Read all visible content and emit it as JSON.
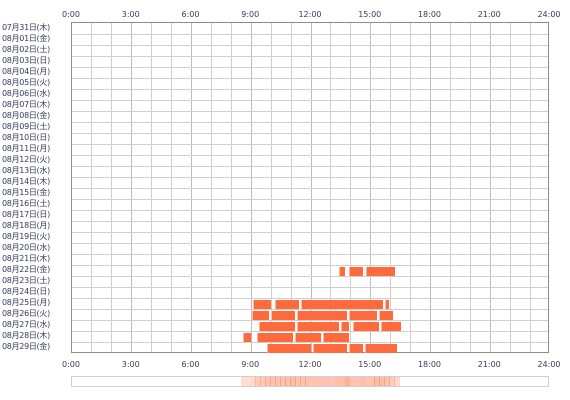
{
  "chart_data": {
    "type": "timeline",
    "x_range_hours": [
      0,
      24
    ],
    "tick_labels": [
      "0:00",
      "3:00",
      "6:00",
      "9:00",
      "12:00",
      "15:00",
      "18:00",
      "21:00",
      "24:00"
    ],
    "tick_hours": [
      0,
      3,
      6,
      9,
      12,
      15,
      18,
      21,
      24
    ],
    "grid": "hourly",
    "bar_color": "#ff6a3d",
    "rows": [
      {
        "label": "07月31日(木)",
        "segments": []
      },
      {
        "label": "08月01日(金)",
        "segments": []
      },
      {
        "label": "08月02日(土)",
        "segments": []
      },
      {
        "label": "08月03日(日)",
        "segments": []
      },
      {
        "label": "08月04日(月)",
        "segments": []
      },
      {
        "label": "08月05日(火)",
        "segments": []
      },
      {
        "label": "08月06日(水)",
        "segments": []
      },
      {
        "label": "08月07日(木)",
        "segments": []
      },
      {
        "label": "08月08日(金)",
        "segments": []
      },
      {
        "label": "08月09日(土)",
        "segments": []
      },
      {
        "label": "08月10日(日)",
        "segments": []
      },
      {
        "label": "08月11日(月)",
        "segments": []
      },
      {
        "label": "08月12日(火)",
        "segments": []
      },
      {
        "label": "08月13日(水)",
        "segments": []
      },
      {
        "label": "08月14日(木)",
        "segments": []
      },
      {
        "label": "08月15日(金)",
        "segments": []
      },
      {
        "label": "08月16日(土)",
        "segments": []
      },
      {
        "label": "08月17日(日)",
        "segments": []
      },
      {
        "label": "08月18日(月)",
        "segments": []
      },
      {
        "label": "08月19日(火)",
        "segments": []
      },
      {
        "label": "08月20日(水)",
        "segments": []
      },
      {
        "label": "08月21日(木)",
        "segments": []
      },
      {
        "label": "08月22日(金)",
        "segments": [
          [
            13.4,
            13.7
          ],
          [
            13.9,
            14.6
          ],
          [
            14.75,
            16.2
          ]
        ]
      },
      {
        "label": "08月23日(土)",
        "segments": []
      },
      {
        "label": "08月24日(日)",
        "segments": []
      },
      {
        "label": "08月25日(月)",
        "segments": [
          [
            9.1,
            10.0
          ],
          [
            10.2,
            11.4
          ],
          [
            11.5,
            15.6
          ],
          [
            15.7,
            15.9
          ]
        ]
      },
      {
        "label": "08月26日(火)",
        "segments": [
          [
            9.05,
            9.9
          ],
          [
            10.0,
            11.2
          ],
          [
            11.3,
            13.8
          ],
          [
            13.9,
            15.3
          ],
          [
            15.4,
            16.1
          ]
        ]
      },
      {
        "label": "08月27日(水)",
        "segments": [
          [
            9.4,
            11.2
          ],
          [
            11.3,
            13.4
          ],
          [
            13.5,
            13.9
          ],
          [
            14.1,
            15.4
          ],
          [
            15.5,
            16.5
          ]
        ]
      },
      {
        "label": "08月28日(木)",
        "segments": [
          [
            8.6,
            9.0
          ],
          [
            9.3,
            11.1
          ],
          [
            11.2,
            12.5
          ],
          [
            12.6,
            13.9
          ]
        ]
      },
      {
        "label": "08月29日(金)",
        "segments": [
          [
            9.8,
            12.0
          ],
          [
            12.1,
            13.8
          ],
          [
            13.9,
            14.6
          ],
          [
            14.7,
            16.3
          ]
        ]
      }
    ]
  }
}
